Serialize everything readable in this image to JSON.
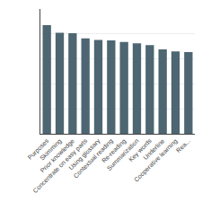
{
  "chart_data": {
    "type": "bar",
    "categories": [
      "Purposes",
      "Skimming",
      "Prior knowledge",
      "Concentrate on easy parts",
      "Using glossary",
      "Contextual reading",
      "Re-reading",
      "Summarization",
      "Key words",
      "Underline",
      "Cooperative learning",
      "Rea..."
    ],
    "values": [
      4.35,
      4.05,
      4.03,
      3.82,
      3.76,
      3.74,
      3.68,
      3.62,
      3.55,
      3.38,
      3.3,
      3.27
    ],
    "color": "#4d6672",
    "ylim": [
      0,
      5
    ],
    "yticks": [
      1,
      2,
      3,
      4,
      5
    ],
    "grid": true,
    "tick_labels": "x"
  }
}
